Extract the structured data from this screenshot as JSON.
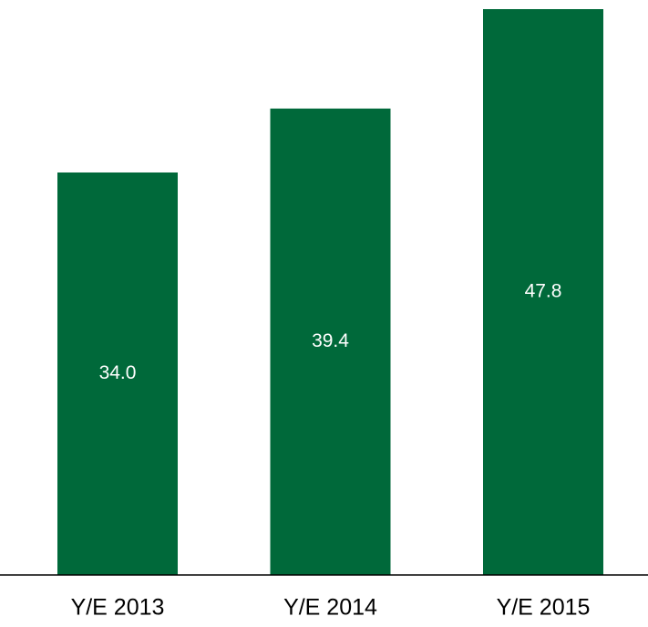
{
  "chart_data": {
    "type": "bar",
    "categories": [
      "Y/E 2013",
      "Y/E 2014",
      "Y/E 2015"
    ],
    "values": [
      34,
      39.4,
      47.8
    ],
    "value_labels": [
      "34.0",
      "39.4",
      "47.8"
    ],
    "color": "#00693a"
  }
}
